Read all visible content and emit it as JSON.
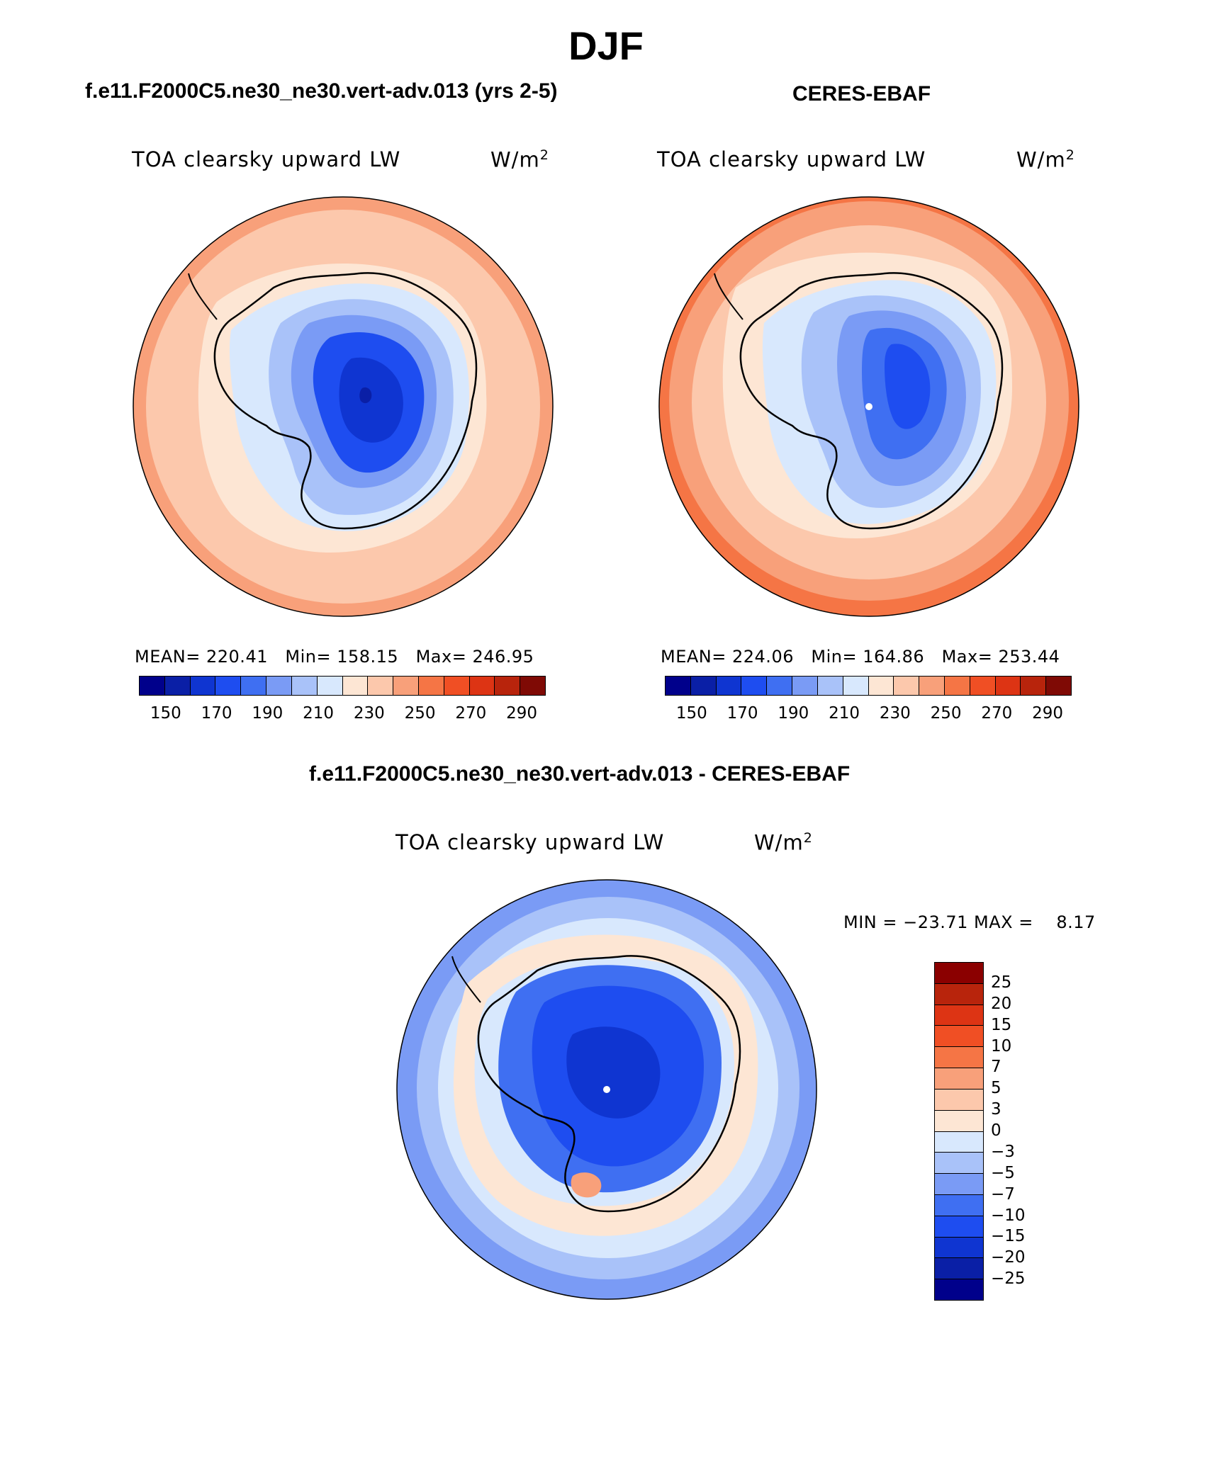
{
  "title": "DJF",
  "panels": [
    {
      "header": "f.e11.F2000C5.ne30_ne30.vert-adv.013 (yrs 2-5)",
      "variable": "TOA clearsky upward LW",
      "units_base": "W/m",
      "units_exp": "2",
      "stats": {
        "mean_label": "MEAN=",
        "mean": "220.41",
        "min_label": "Min=",
        "min": "158.15",
        "max_label": "Max=",
        "max": "246.95"
      },
      "colorbar": {
        "colors": [
          "#00008b",
          "#0a1fa6",
          "#0f35d1",
          "#1e4df0",
          "#3f6ff2",
          "#7a9bf5",
          "#a9c2f9",
          "#d8e8fd",
          "#fde6d4",
          "#fcc8ac",
          "#f8a07a",
          "#f57545",
          "#f04f24",
          "#dd3414",
          "#b8240c",
          "#7f0a05"
        ],
        "labels": [
          "150",
          "170",
          "190",
          "210",
          "230",
          "250",
          "270",
          "290"
        ]
      }
    },
    {
      "header": "CERES-EBAF",
      "variable": "TOA clearsky upward LW",
      "units_base": "W/m",
      "units_exp": "2",
      "stats": {
        "mean_label": "MEAN=",
        "mean": "224.06",
        "min_label": "Min=",
        "min": "164.86",
        "max_label": "Max=",
        "max": "253.44"
      },
      "colorbar": {
        "colors": [
          "#00008b",
          "#0a1fa6",
          "#0f35d1",
          "#1e4df0",
          "#3f6ff2",
          "#7a9bf5",
          "#a9c2f9",
          "#d8e8fd",
          "#fde6d4",
          "#fcc8ac",
          "#f8a07a",
          "#f57545",
          "#f04f24",
          "#dd3414",
          "#b8240c",
          "#7f0a05"
        ],
        "labels": [
          "150",
          "170",
          "190",
          "210",
          "230",
          "250",
          "270",
          "290"
        ]
      }
    }
  ],
  "diff": {
    "header": "f.e11.F2000C5.ne30_ne30.vert-adv.013 - CERES-EBAF",
    "variable": "TOA clearsky upward LW",
    "units_base": "W/m",
    "units_exp": "2",
    "minmax": "MIN = −23.71 MAX =    8.17",
    "colorbar": {
      "colors": [
        "#8b0000",
        "#b8240c",
        "#dd3414",
        "#f04f24",
        "#f57545",
        "#f8a07a",
        "#fcc8ac",
        "#fde6d4",
        "#d8e8fd",
        "#a9c2f9",
        "#7a9bf5",
        "#3f6ff2",
        "#1e4df0",
        "#0f35d1",
        "#0a1fa6",
        "#00008b"
      ],
      "labels": [
        "25",
        "20",
        "15",
        "10",
        "7",
        "5",
        "3",
        "0",
        "−3",
        "−5",
        "−7",
        "−10",
        "−15",
        "−20",
        "−25"
      ]
    }
  }
}
